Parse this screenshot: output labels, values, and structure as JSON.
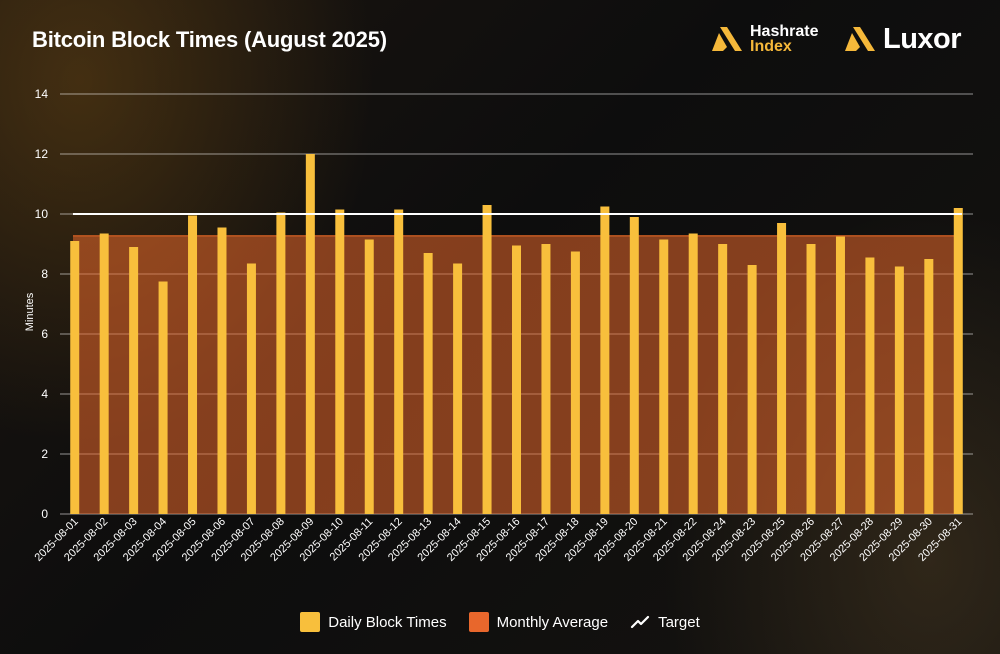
{
  "header": {
    "title": "Bitcoin Block Times (August 2025)"
  },
  "brands": {
    "hashrate_line1": "Hashrate",
    "hashrate_line2": "Index",
    "luxor": "Luxor"
  },
  "colors": {
    "daily_bar": "#f8bf3c",
    "monthly_average": "#e8672c",
    "target_line": "#ffffff",
    "background": "#121212"
  },
  "chart_data": {
    "type": "bar",
    "ylabel": "Minutes",
    "xlabel": "",
    "ylim": [
      0,
      14
    ],
    "yticks": [
      0,
      2,
      4,
      6,
      8,
      10,
      12,
      14
    ],
    "grid": true,
    "legend_placement": "bottom-center",
    "categories": [
      "2025-08-01",
      "2025-08-02",
      "2025-08-03",
      "2025-08-04",
      "2025-08-05",
      "2025-08-06",
      "2025-08-07",
      "2025-08-08",
      "2025-08-09",
      "2025-08-10",
      "2025-08-11",
      "2025-08-12",
      "2025-08-13",
      "2025-08-14",
      "2025-08-15",
      "2025-08-16",
      "2025-08-17",
      "2025-08-18",
      "2025-08-19",
      "2025-08-20",
      "2025-08-21",
      "2025-08-22",
      "2025-08-24",
      "2025-08-23",
      "2025-08-25",
      "2025-08-26",
      "2025-08-27",
      "2025-08-28",
      "2025-08-29",
      "2025-08-30",
      "2025-08-31"
    ],
    "series": [
      {
        "name": "Daily Block Times",
        "values": [
          9.1,
          9.35,
          8.9,
          7.75,
          9.95,
          9.55,
          8.35,
          10.05,
          12.0,
          10.15,
          9.15,
          10.15,
          8.7,
          8.35,
          10.3,
          8.95,
          9.0,
          8.75,
          10.25,
          9.9,
          9.15,
          9.35,
          9.0,
          8.3,
          9.7,
          9.0,
          9.25,
          8.55,
          8.25,
          8.5,
          10.2
        ]
      }
    ],
    "monthly_average": {
      "name": "Monthly Average",
      "value": 9.27
    },
    "target": {
      "name": "Target",
      "value": 10
    }
  }
}
